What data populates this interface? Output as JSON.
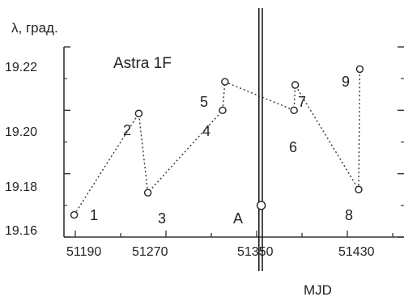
{
  "chart_data": {
    "type": "scatter",
    "title": "Astra 1F",
    "ylabel": "λ, град.",
    "xlabel": "MJD",
    "xlim": [
      51180,
      51480
    ],
    "ylim": [
      19.16,
      19.22
    ],
    "x_ticks": [
      "51190",
      "51270",
      "51350",
      "51430"
    ],
    "y_ticks": [
      "19.16",
      "19.18",
      "19.20",
      "19.22"
    ],
    "grid": false,
    "points": [
      {
        "label": "1",
        "x": 51189,
        "y": 19.167
      },
      {
        "label": "2",
        "x": 51246,
        "y": 19.199
      },
      {
        "label": "3",
        "x": 51254,
        "y": 19.174
      },
      {
        "label": "4",
        "x": 51320,
        "y": 19.2
      },
      {
        "label": "5",
        "x": 51322,
        "y": 19.209
      },
      {
        "label": "6",
        "x": 51383,
        "y": 19.2
      },
      {
        "label": "7",
        "x": 51384,
        "y": 19.208
      },
      {
        "label": "8",
        "x": 51440,
        "y": 19.175
      },
      {
        "label": "9",
        "x": 51441,
        "y": 19.213
      },
      {
        "label": "A",
        "x": 51354,
        "y": 19.17
      }
    ],
    "dotted_path": [
      "1",
      "2",
      "3",
      "4",
      "5",
      "6",
      "7",
      "8",
      "9"
    ],
    "event_lines": [
      {
        "x": 51352
      },
      {
        "x": 51355
      }
    ]
  }
}
